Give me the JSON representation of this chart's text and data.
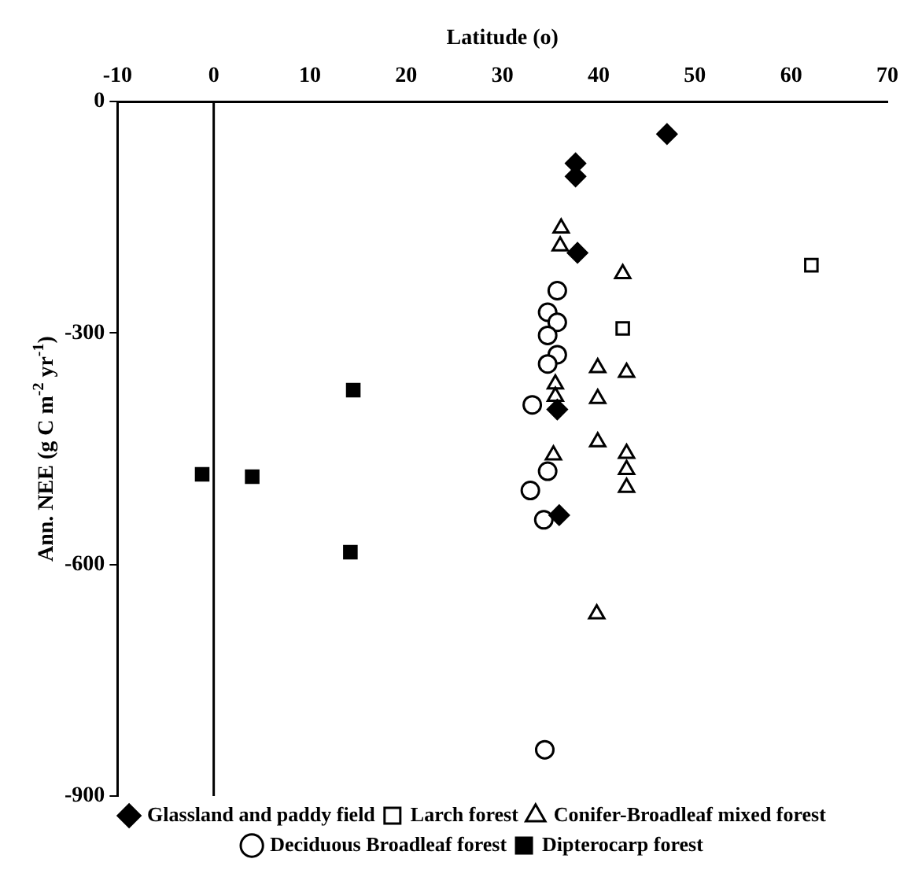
{
  "chart_data": {
    "type": "scatter",
    "xlabel": "Latitude (o)",
    "ylabel": "Ann. NEE (g C m$^{-2}$ yr$^{-1}$)",
    "xlim": [
      -10,
      70
    ],
    "xticks": [
      -10,
      0,
      10,
      20,
      30,
      40,
      50,
      60,
      70
    ],
    "ylim": [
      -900,
      0
    ],
    "yticks": [
      -900,
      -600,
      -300,
      0
    ],
    "grid": false,
    "legend": "bottom",
    "ref_lines": [
      {
        "axis": "x",
        "value": 0,
        "color": "#000000"
      }
    ],
    "series": [
      {
        "name": "Glassland and paddy field",
        "color": "#000000",
        "marker": "diamond",
        "x": [
          47.1,
          37.6,
          37.6,
          37.8,
          35.7,
          35.9
        ],
        "values": [
          -42,
          -80,
          -97,
          -196,
          -399,
          -536
        ]
      },
      {
        "name": "Larch forest",
        "color": "#000000",
        "marker": "square",
        "x": [
          62.1,
          42.5
        ],
        "values": [
          -212,
          -294
        ]
      },
      {
        "name": "Conifer-Broadleaf mixed forest",
        "color": "#000000",
        "marker": "triangle",
        "x": [
          36.1,
          36,
          42.5,
          39.9,
          42.9,
          39.9,
          35.5,
          35.5,
          39.9,
          42.9,
          42.9,
          42.9,
          35.3,
          39.8
        ],
        "values": [
          -164,
          -187,
          -223,
          -345,
          -351,
          -385,
          -366,
          -382,
          -441,
          -456,
          -477,
          -500,
          -458,
          -664
        ]
      },
      {
        "name": "Deciduous Broadleaf forest",
        "color": "#000000",
        "marker": "circle",
        "x": [
          35.7,
          34.7,
          35.7,
          34.7,
          35.7,
          34.7,
          33.1,
          34.7,
          32.9,
          34.3,
          34.4
        ],
        "values": [
          -245,
          -273,
          -286,
          -303,
          -328,
          -340,
          -393,
          -479,
          -504,
          -542,
          -840
        ]
      },
      {
        "name": "Dipterocarp forest",
        "color": "#000000",
        "marker": "square",
        "x": [
          14.5,
          -1.2,
          4.0,
          14.2
        ],
        "values": [
          -374,
          -483,
          -486,
          -584
        ]
      }
    ]
  }
}
